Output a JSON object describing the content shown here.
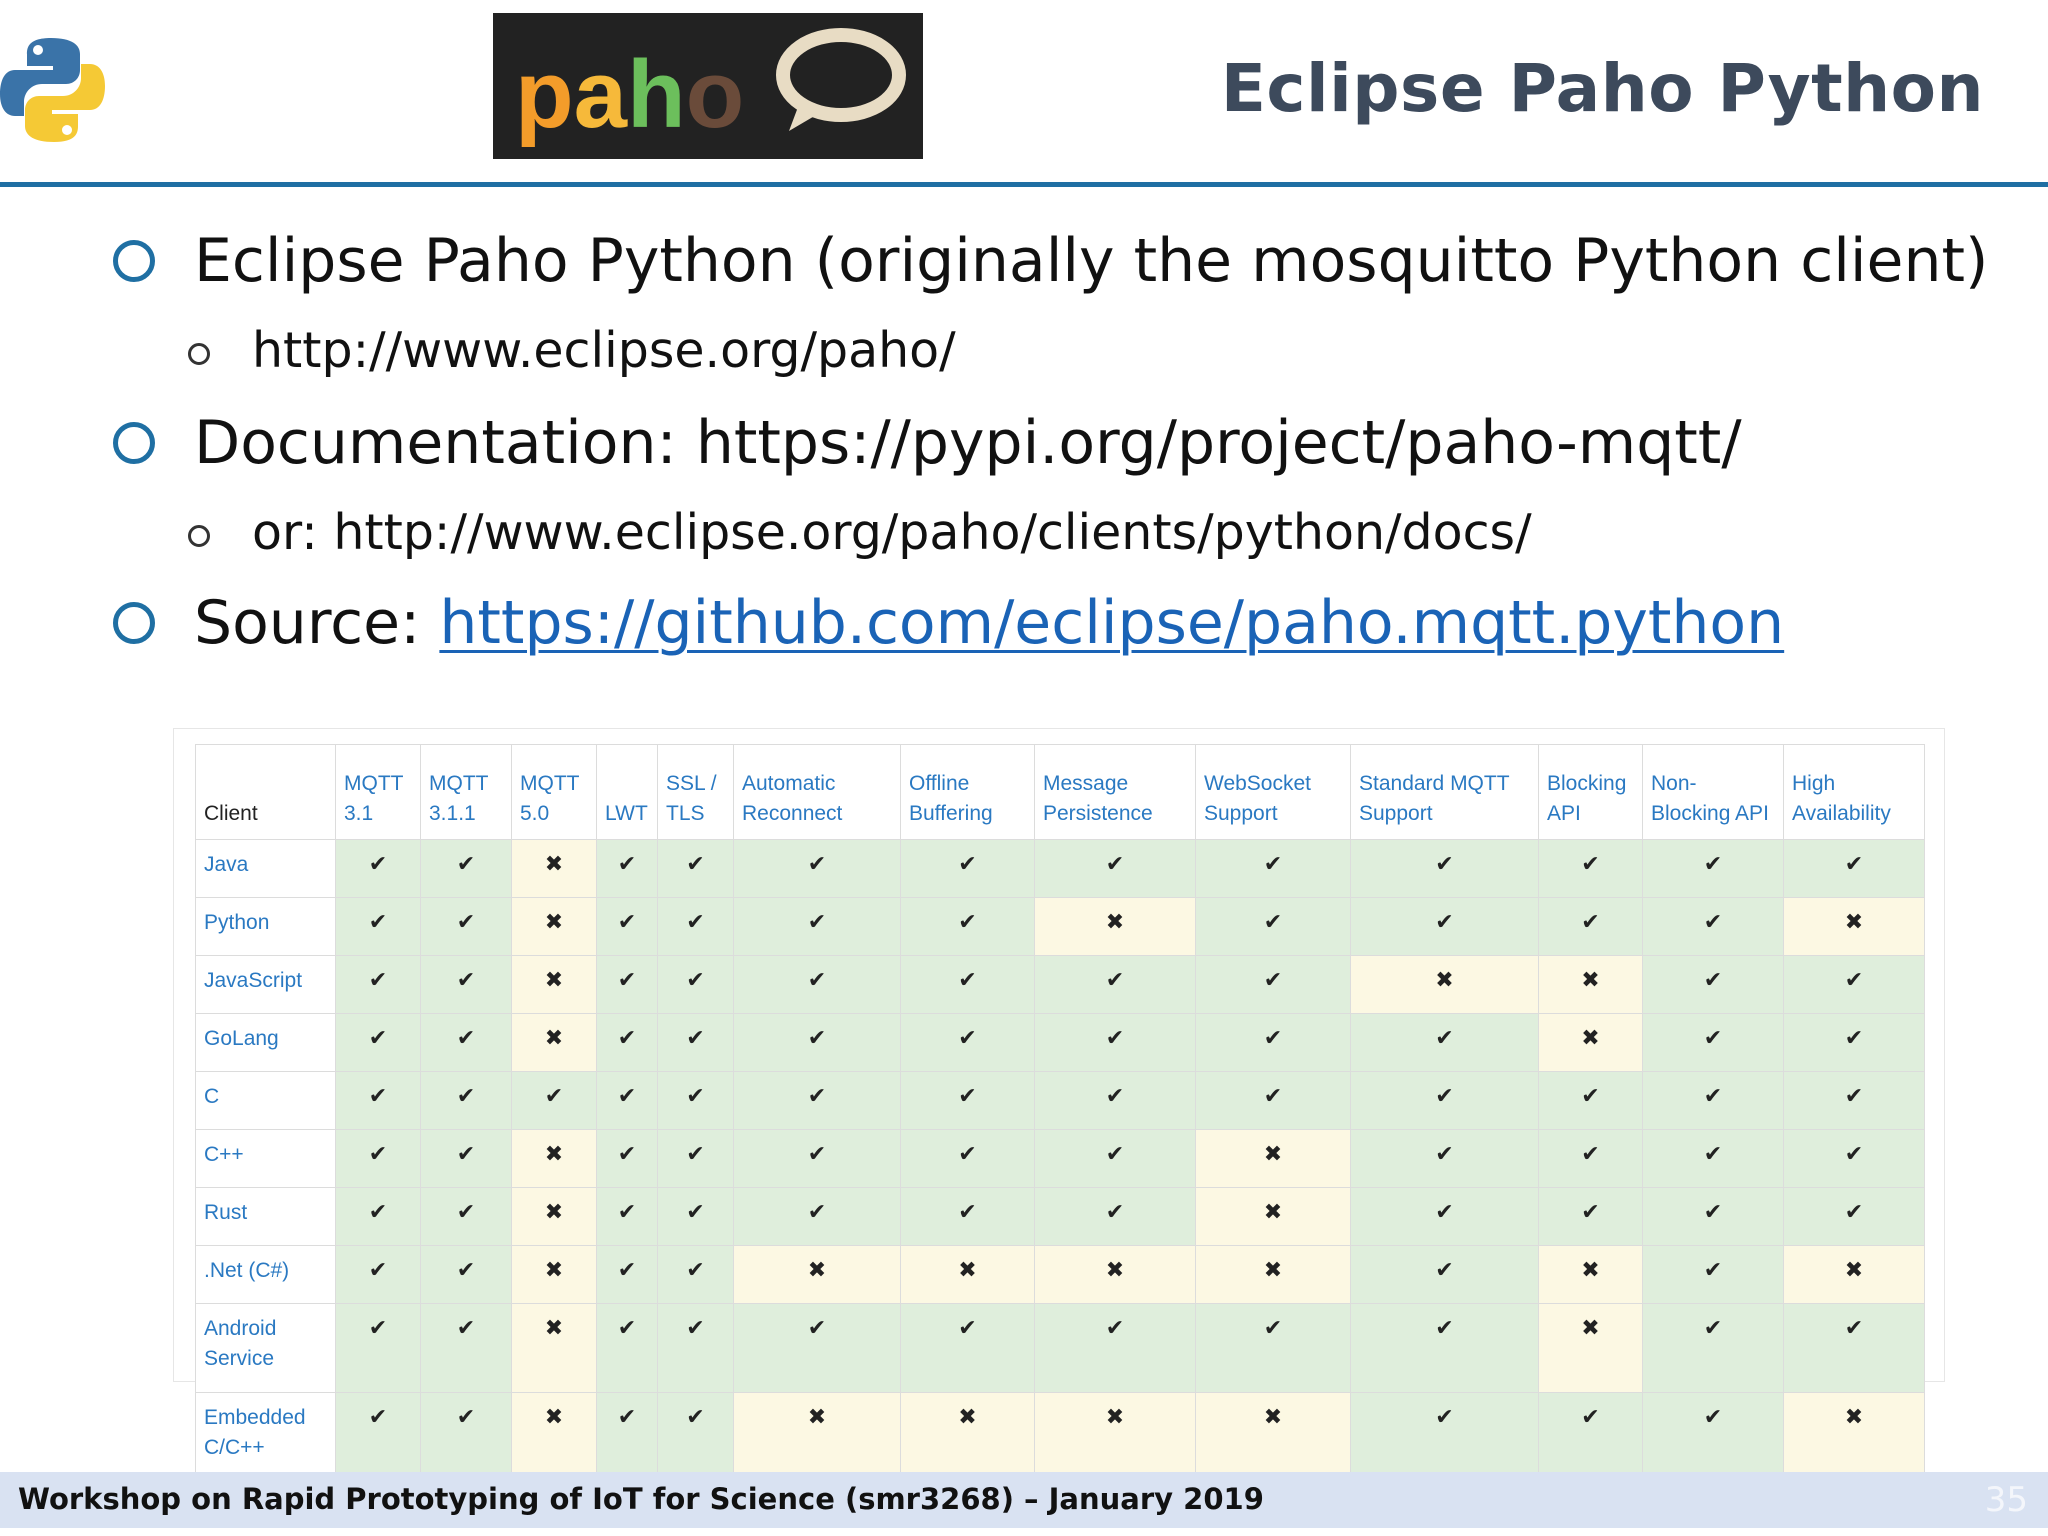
{
  "slide": {
    "title": "Eclipse Paho Python",
    "logo_text": "paho",
    "bullets": [
      {
        "level": 1,
        "text": "Eclipse Paho Python (originally the mosquitto Python client)"
      },
      {
        "level": 2,
        "text": "http://www.eclipse.org/paho/"
      },
      {
        "level": 1,
        "text": "Documentation: https://pypi.org/project/paho-mqtt/"
      },
      {
        "level": 2,
        "text": "or: http://www.eclipse.org/paho/clients/python/docs/"
      }
    ],
    "source_label": "Source: ",
    "source_link": "https://github.com/eclipse/paho.mqtt.python"
  },
  "table": {
    "columns": [
      {
        "label": "Client"
      },
      {
        "line1": "MQTT",
        "line2": "3.1"
      },
      {
        "line1": "MQTT",
        "line2": "3.1.1"
      },
      {
        "line1": "MQTT",
        "line2": "5.0"
      },
      {
        "line1": "",
        "line2": "LWT"
      },
      {
        "line1": "SSL /",
        "line2": "TLS"
      },
      {
        "line1": "Automatic",
        "line2": "Reconnect"
      },
      {
        "line1": "Offline",
        "line2": "Buffering"
      },
      {
        "line1": "Message",
        "line2": "Persistence"
      },
      {
        "line1": "WebSocket",
        "line2": "Support"
      },
      {
        "line1": "Standard MQTT",
        "line2": "Support"
      },
      {
        "line1": "Blocking",
        "line2": "API"
      },
      {
        "line1": "Non-",
        "line2": "Blocking API"
      },
      {
        "line1": "High",
        "line2": "Availability"
      }
    ],
    "rows": [
      {
        "client": "Java",
        "values": [
          1,
          1,
          0,
          1,
          1,
          1,
          1,
          1,
          1,
          1,
          1,
          1,
          1
        ]
      },
      {
        "client": "Python",
        "values": [
          1,
          1,
          0,
          1,
          1,
          1,
          1,
          0,
          1,
          1,
          1,
          1,
          0
        ]
      },
      {
        "client": "JavaScript",
        "values": [
          1,
          1,
          0,
          1,
          1,
          1,
          1,
          1,
          1,
          0,
          0,
          1,
          1
        ]
      },
      {
        "client": "GoLang",
        "values": [
          1,
          1,
          0,
          1,
          1,
          1,
          1,
          1,
          1,
          1,
          0,
          1,
          1
        ]
      },
      {
        "client": "C",
        "values": [
          1,
          1,
          1,
          1,
          1,
          1,
          1,
          1,
          1,
          1,
          1,
          1,
          1
        ]
      },
      {
        "client": "C++",
        "values": [
          1,
          1,
          0,
          1,
          1,
          1,
          1,
          1,
          0,
          1,
          1,
          1,
          1
        ]
      },
      {
        "client": "Rust",
        "values": [
          1,
          1,
          0,
          1,
          1,
          1,
          1,
          1,
          0,
          1,
          1,
          1,
          1
        ]
      },
      {
        "client": ".Net (C#)",
        "values": [
          1,
          1,
          0,
          1,
          1,
          0,
          0,
          0,
          0,
          1,
          0,
          1,
          0
        ]
      },
      {
        "client": "Android Service",
        "values": [
          1,
          1,
          0,
          1,
          1,
          1,
          1,
          1,
          1,
          1,
          0,
          1,
          1
        ]
      },
      {
        "client": "Embedded C/C++",
        "values": [
          1,
          1,
          0,
          1,
          1,
          0,
          0,
          0,
          0,
          1,
          1,
          1,
          0
        ]
      }
    ],
    "yes_symbol": "✔",
    "no_symbol": "✖",
    "colors": {
      "yes_bg": "#dfeedc",
      "no_bg": "#fcf8e3",
      "header_text": "#2a79c2"
    }
  },
  "footer": {
    "text": "Workshop on Rapid Prototyping of IoT for Science (smr3268) – January 2019",
    "page_number": "35"
  },
  "colors": {
    "accent": "#1f6fa3",
    "title": "#3d4a5c",
    "link": "#1a63b6",
    "footer_bg": "#d9e2f2"
  }
}
